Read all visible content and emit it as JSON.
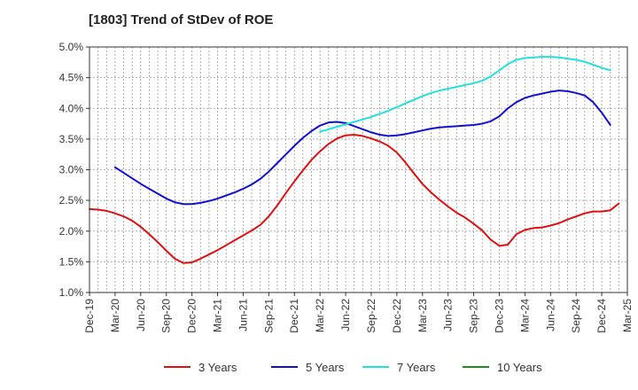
{
  "chart_data": {
    "type": "line",
    "title": "[1803]  Trend of StDev of ROE",
    "xlabel": "",
    "ylabel": "",
    "x_tick_labels": [
      "Dec-19",
      "Mar-20",
      "Jun-20",
      "Sep-20",
      "Dec-20",
      "Mar-21",
      "Jun-21",
      "Sep-21",
      "Dec-21",
      "Mar-22",
      "Jun-22",
      "Sep-22",
      "Dec-22",
      "Mar-23",
      "Jun-23",
      "Sep-23",
      "Dec-23",
      "Mar-24",
      "Jun-24",
      "Sep-24",
      "Dec-24",
      "Mar-25"
    ],
    "y_tick_labels": [
      "1.0%",
      "1.5%",
      "2.0%",
      "2.5%",
      "3.0%",
      "3.5%",
      "4.0%",
      "4.5%",
      "5.0%"
    ],
    "ylim": [
      1.0,
      5.0
    ],
    "y_unit": "%",
    "grid": true,
    "legend_position": "bottom",
    "series": [
      {
        "name": "3 Years",
        "color": "#dd1111",
        "points": [
          [
            "Dec-19",
            2.36
          ],
          [
            "Jan-20",
            2.35
          ],
          [
            "Feb-20",
            2.33
          ],
          [
            "Mar-20",
            2.29
          ],
          [
            "Apr-20",
            2.24
          ],
          [
            "May-20",
            2.17
          ],
          [
            "Jun-20",
            2.07
          ],
          [
            "Jul-20",
            1.95
          ],
          [
            "Aug-20",
            1.82
          ],
          [
            "Sep-20",
            1.68
          ],
          [
            "Oct-20",
            1.55
          ],
          [
            "Nov-20",
            1.48
          ],
          [
            "Dec-20",
            1.49
          ],
          [
            "Jan-21",
            1.55
          ],
          [
            "Feb-21",
            1.62
          ],
          [
            "Mar-21",
            1.69
          ],
          [
            "Apr-21",
            1.77
          ],
          [
            "May-21",
            1.85
          ],
          [
            "Jun-21",
            1.93
          ],
          [
            "Jul-21",
            2.01
          ],
          [
            "Aug-21",
            2.1
          ],
          [
            "Sep-21",
            2.24
          ],
          [
            "Oct-21",
            2.42
          ],
          [
            "Nov-21",
            2.62
          ],
          [
            "Dec-21",
            2.81
          ],
          [
            "Jan-22",
            2.99
          ],
          [
            "Feb-22",
            3.16
          ],
          [
            "Mar-22",
            3.3
          ],
          [
            "Apr-22",
            3.42
          ],
          [
            "May-22",
            3.51
          ],
          [
            "Jun-22",
            3.56
          ],
          [
            "Jul-22",
            3.57
          ],
          [
            "Aug-22",
            3.55
          ],
          [
            "Sep-22",
            3.51
          ],
          [
            "Oct-22",
            3.46
          ],
          [
            "Nov-22",
            3.39
          ],
          [
            "Dec-22",
            3.28
          ],
          [
            "Jan-23",
            3.12
          ],
          [
            "Feb-23",
            2.94
          ],
          [
            "Mar-23",
            2.77
          ],
          [
            "Apr-23",
            2.63
          ],
          [
            "May-23",
            2.51
          ],
          [
            "Jun-23",
            2.4
          ],
          [
            "Jul-23",
            2.3
          ],
          [
            "Aug-23",
            2.22
          ],
          [
            "Sep-23",
            2.12
          ],
          [
            "Oct-23",
            2.01
          ],
          [
            "Nov-23",
            1.86
          ],
          [
            "Dec-23",
            1.76
          ],
          [
            "Jan-24",
            1.78
          ],
          [
            "Feb-24",
            1.95
          ],
          [
            "Mar-24",
            2.02
          ],
          [
            "Apr-24",
            2.05
          ],
          [
            "May-24",
            2.06
          ],
          [
            "Jun-24",
            2.09
          ],
          [
            "Jul-24",
            2.13
          ],
          [
            "Aug-24",
            2.19
          ],
          [
            "Sep-24",
            2.24
          ],
          [
            "Oct-24",
            2.29
          ],
          [
            "Nov-24",
            2.32
          ],
          [
            "Dec-24",
            2.32
          ],
          [
            "Jan-25",
            2.34
          ],
          [
            "Feb-25",
            2.45
          ]
        ]
      },
      {
        "name": "5 Years",
        "color": "#1111cc",
        "points": [
          [
            "Mar-20",
            3.04
          ],
          [
            "Apr-20",
            2.95
          ],
          [
            "May-20",
            2.86
          ],
          [
            "Jun-20",
            2.77
          ],
          [
            "Jul-20",
            2.69
          ],
          [
            "Aug-20",
            2.61
          ],
          [
            "Sep-20",
            2.53
          ],
          [
            "Oct-20",
            2.47
          ],
          [
            "Nov-20",
            2.44
          ],
          [
            "Dec-20",
            2.44
          ],
          [
            "Jan-21",
            2.46
          ],
          [
            "Feb-21",
            2.49
          ],
          [
            "Mar-21",
            2.53
          ],
          [
            "Apr-21",
            2.58
          ],
          [
            "May-21",
            2.63
          ],
          [
            "Jun-21",
            2.69
          ],
          [
            "Jul-21",
            2.76
          ],
          [
            "Aug-21",
            2.85
          ],
          [
            "Sep-21",
            2.97
          ],
          [
            "Oct-21",
            3.11
          ],
          [
            "Nov-21",
            3.25
          ],
          [
            "Dec-21",
            3.39
          ],
          [
            "Jan-22",
            3.52
          ],
          [
            "Feb-22",
            3.63
          ],
          [
            "Mar-22",
            3.72
          ],
          [
            "Apr-22",
            3.77
          ],
          [
            "May-22",
            3.78
          ],
          [
            "Jun-22",
            3.76
          ],
          [
            "Jul-22",
            3.71
          ],
          [
            "Aug-22",
            3.66
          ],
          [
            "Sep-22",
            3.61
          ],
          [
            "Oct-22",
            3.57
          ],
          [
            "Nov-22",
            3.55
          ],
          [
            "Dec-22",
            3.56
          ],
          [
            "Jan-23",
            3.58
          ],
          [
            "Feb-23",
            3.61
          ],
          [
            "Mar-23",
            3.64
          ],
          [
            "Apr-23",
            3.67
          ],
          [
            "May-23",
            3.69
          ],
          [
            "Jun-23",
            3.7
          ],
          [
            "Jul-23",
            3.71
          ],
          [
            "Aug-23",
            3.72
          ],
          [
            "Sep-23",
            3.73
          ],
          [
            "Oct-23",
            3.75
          ],
          [
            "Nov-23",
            3.79
          ],
          [
            "Dec-23",
            3.87
          ],
          [
            "Jan-24",
            4.0
          ],
          [
            "Feb-24",
            4.1
          ],
          [
            "Mar-24",
            4.17
          ],
          [
            "Apr-24",
            4.21
          ],
          [
            "May-24",
            4.24
          ],
          [
            "Jun-24",
            4.27
          ],
          [
            "Jul-24",
            4.29
          ],
          [
            "Aug-24",
            4.28
          ],
          [
            "Sep-24",
            4.25
          ],
          [
            "Oct-24",
            4.21
          ],
          [
            "Nov-24",
            4.1
          ],
          [
            "Dec-24",
            3.93
          ],
          [
            "Jan-25",
            3.73
          ]
        ]
      },
      {
        "name": "7 Years",
        "color": "#22e0e0",
        "points": [
          [
            "Mar-22",
            3.62
          ],
          [
            "Apr-22",
            3.66
          ],
          [
            "May-22",
            3.7
          ],
          [
            "Jun-22",
            3.74
          ],
          [
            "Jul-22",
            3.78
          ],
          [
            "Aug-22",
            3.82
          ],
          [
            "Sep-22",
            3.86
          ],
          [
            "Oct-22",
            3.91
          ],
          [
            "Nov-22",
            3.96
          ],
          [
            "Dec-22",
            4.02
          ],
          [
            "Jan-23",
            4.08
          ],
          [
            "Feb-23",
            4.14
          ],
          [
            "Mar-23",
            4.2
          ],
          [
            "Apr-23",
            4.25
          ],
          [
            "May-23",
            4.29
          ],
          [
            "Jun-23",
            4.32
          ],
          [
            "Jul-23",
            4.35
          ],
          [
            "Aug-23",
            4.38
          ],
          [
            "Sep-23",
            4.41
          ],
          [
            "Oct-23",
            4.45
          ],
          [
            "Nov-23",
            4.52
          ],
          [
            "Dec-23",
            4.62
          ],
          [
            "Jan-24",
            4.72
          ],
          [
            "Feb-24",
            4.79
          ],
          [
            "Mar-24",
            4.82
          ],
          [
            "Apr-24",
            4.83
          ],
          [
            "May-24",
            4.84
          ],
          [
            "Jun-24",
            4.84
          ],
          [
            "Jul-24",
            4.83
          ],
          [
            "Aug-24",
            4.81
          ],
          [
            "Sep-24",
            4.79
          ],
          [
            "Oct-24",
            4.76
          ],
          [
            "Nov-24",
            4.71
          ],
          [
            "Dec-24",
            4.66
          ],
          [
            "Jan-25",
            4.62
          ]
        ]
      },
      {
        "name": "10 Years",
        "color": "#228822",
        "points": []
      }
    ]
  }
}
